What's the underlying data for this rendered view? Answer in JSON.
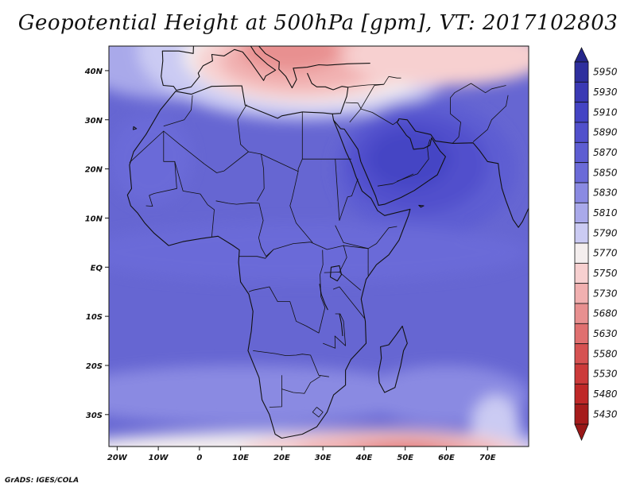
{
  "title": "Geopotential Height at 500hPa [gpm], VT: 2017102803",
  "credit": "GrADS: IGES/COLA",
  "lon_ticks": [
    {
      "value": -20,
      "label": "20W"
    },
    {
      "value": -10,
      "label": "10W"
    },
    {
      "value": 0,
      "label": "0"
    },
    {
      "value": 10,
      "label": "10E"
    },
    {
      "value": 20,
      "label": "20E"
    },
    {
      "value": 30,
      "label": "30E"
    },
    {
      "value": 40,
      "label": "40E"
    },
    {
      "value": 50,
      "label": "50E"
    },
    {
      "value": 60,
      "label": "60E"
    },
    {
      "value": 70,
      "label": "70E"
    }
  ],
  "lat_ticks": [
    {
      "value": 40,
      "label": "40N"
    },
    {
      "value": 30,
      "label": "30N"
    },
    {
      "value": 20,
      "label": "20N"
    },
    {
      "value": 10,
      "label": "10N"
    },
    {
      "value": 0,
      "label": "EQ"
    },
    {
      "value": -10,
      "label": "10S"
    },
    {
      "value": -20,
      "label": "20S"
    },
    {
      "value": -30,
      "label": "30S"
    }
  ],
  "extent": {
    "lon_min": -22,
    "lon_max": 80,
    "lat_min": -36.5,
    "lat_max": 45
  },
  "colorbar": {
    "levels": [
      "5950",
      "5930",
      "5910",
      "5890",
      "5870",
      "5850",
      "5830",
      "5810",
      "5790",
      "5770",
      "5750",
      "5730",
      "5680",
      "5630",
      "5580",
      "5530",
      "5480",
      "5430"
    ],
    "colors": [
      "#2e2f9e",
      "#3a39b4",
      "#4444c4",
      "#5150cc",
      "#5d5dd2",
      "#6b6bd8",
      "#8a8ae2",
      "#a9a9ea",
      "#cbcbf3",
      "#f4eeee",
      "#f7d0d0",
      "#f1b0b0",
      "#e89090",
      "#e07070",
      "#d65252",
      "#cc3a3a",
      "#bf2828",
      "#a61c1c"
    ],
    "max_arrow_color": "#25268a",
    "min_arrow_color": "#991818"
  },
  "features": [
    {
      "name": "ridge-arabia",
      "lon": 50,
      "lat": 21,
      "value": 5890
    },
    {
      "name": "trough-mediterranean",
      "lon": 24,
      "lat": 40,
      "value": 5680
    },
    {
      "name": "trough-south-indian-ocean",
      "lon": 50,
      "lat": -36,
      "value": 5630
    }
  ]
}
